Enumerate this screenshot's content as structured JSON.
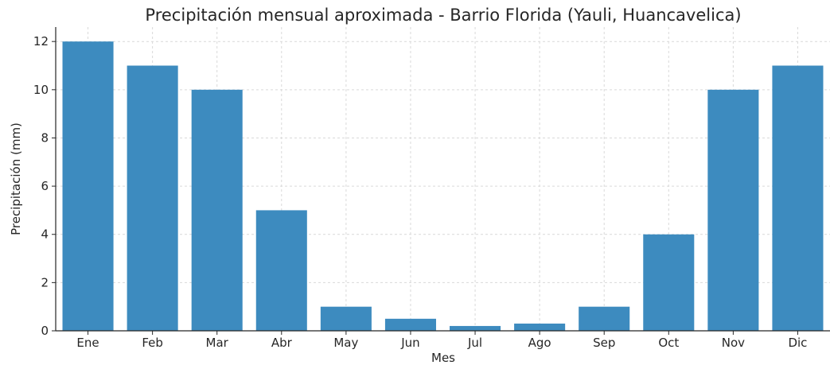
{
  "chart_data": {
    "type": "bar",
    "title": "Precipitación mensual aproximada - Barrio Florida (Yauli, Huancavelica)",
    "xlabel": "Mes",
    "ylabel": "Precipitación (mm)",
    "categories": [
      "Ene",
      "Feb",
      "Mar",
      "Abr",
      "May",
      "Jun",
      "Jul",
      "Ago",
      "Sep",
      "Oct",
      "Nov",
      "Dic"
    ],
    "values": [
      12,
      11,
      10,
      5,
      1,
      0.5,
      0.2,
      0.3,
      1,
      4,
      10,
      11
    ],
    "ylim": [
      0,
      12.6
    ],
    "yticks": [
      0,
      2,
      4,
      6,
      8,
      10,
      12
    ],
    "grid": true,
    "bar_color": "#3d8bbf",
    "axis_color": "#262626",
    "grid_color": "#d9d9d9"
  }
}
